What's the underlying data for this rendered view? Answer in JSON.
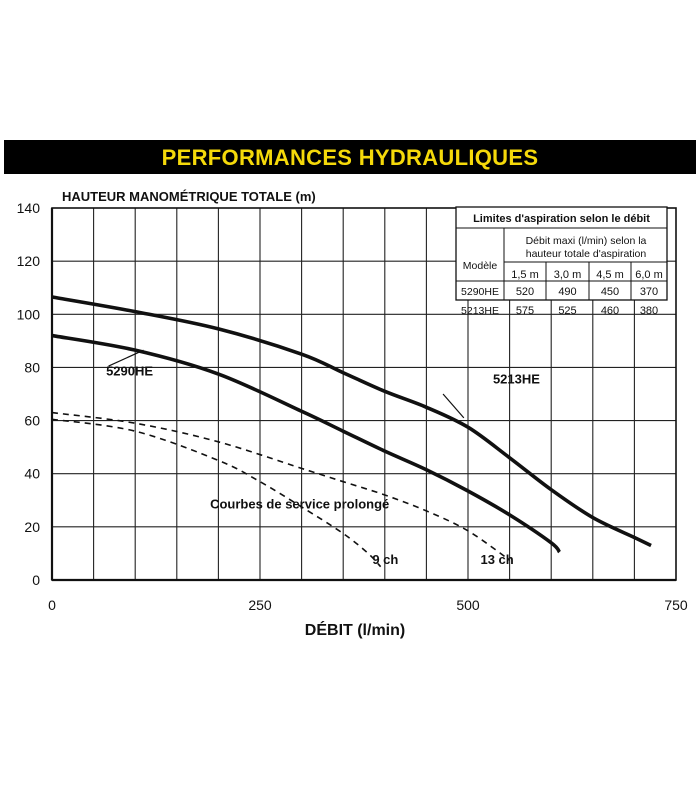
{
  "title": "PERFORMANCES HYDRAULIQUES",
  "colors": {
    "title_bg": "#000000",
    "title_text": "#f5d90a",
    "ink": "#111111",
    "grid": "#222222"
  },
  "chart_data": {
    "type": "line",
    "title": "PERFORMANCES HYDRAULIQUES",
    "ylabel": "HAUTEUR MANOMÉTRIQUE TOTALE (m)",
    "xlabel": "DÉBIT (l/min)",
    "xlim": [
      0,
      750
    ],
    "ylim": [
      0,
      140
    ],
    "xticks": [
      0,
      250,
      500,
      750
    ],
    "yticks": [
      0,
      20,
      40,
      60,
      80,
      100,
      120,
      140
    ],
    "grid": true,
    "series": [
      {
        "name": "5213HE",
        "style": "solid",
        "x": [
          0,
          100,
          200,
          300,
          350,
          400,
          450,
          500,
          550,
          600,
          650,
          700,
          720
        ],
        "y": [
          106.5,
          101,
          94.5,
          85,
          78,
          71,
          65,
          57.5,
          46,
          34,
          23.5,
          16,
          13
        ]
      },
      {
        "name": "5290HE",
        "style": "solid",
        "x": [
          0,
          100,
          200,
          300,
          350,
          400,
          450,
          500,
          550,
          600,
          610
        ],
        "y": [
          92,
          86.5,
          77.5,
          63.5,
          56,
          48.5,
          41.5,
          33.5,
          24.5,
          14,
          10.5
        ]
      },
      {
        "name": "13 ch",
        "style": "dashed",
        "x": [
          0,
          100,
          200,
          300,
          350,
          400,
          450,
          500,
          550
        ],
        "y": [
          63,
          59,
          52,
          42,
          37,
          32,
          26,
          18.5,
          7.5
        ]
      },
      {
        "name": "9 ch",
        "style": "dashed",
        "x": [
          0,
          100,
          200,
          250,
          300,
          350,
          380,
          395
        ],
        "y": [
          60.5,
          56,
          45,
          37,
          27.5,
          17.5,
          10,
          5
        ]
      }
    ],
    "annotations": [
      {
        "text": "5290HE",
        "x": 65,
        "y": 77
      },
      {
        "text": "5213HE",
        "x": 530,
        "y": 74
      },
      {
        "text": "Courbes de service prolongé",
        "x": 190,
        "y": 27
      },
      {
        "text": "9 ch",
        "x": 385,
        "y": 6
      },
      {
        "text": "13 ch",
        "x": 515,
        "y": 6
      }
    ]
  },
  "inset_table": {
    "title": "Limites d'aspiration selon le débit",
    "model_header": "Modèle",
    "group_header_line1": "Débit maxi (l/min) selon la",
    "group_header_line2": "hauteur totale d'aspiration",
    "columns": [
      "1,5 m",
      "3,0 m",
      "4,5 m",
      "6,0 m"
    ],
    "rows": [
      {
        "model": "5290HE",
        "values": [
          "520",
          "490",
          "450",
          "370"
        ]
      },
      {
        "model": "5213HE",
        "values": [
          "575",
          "525",
          "460",
          "380"
        ]
      }
    ]
  }
}
